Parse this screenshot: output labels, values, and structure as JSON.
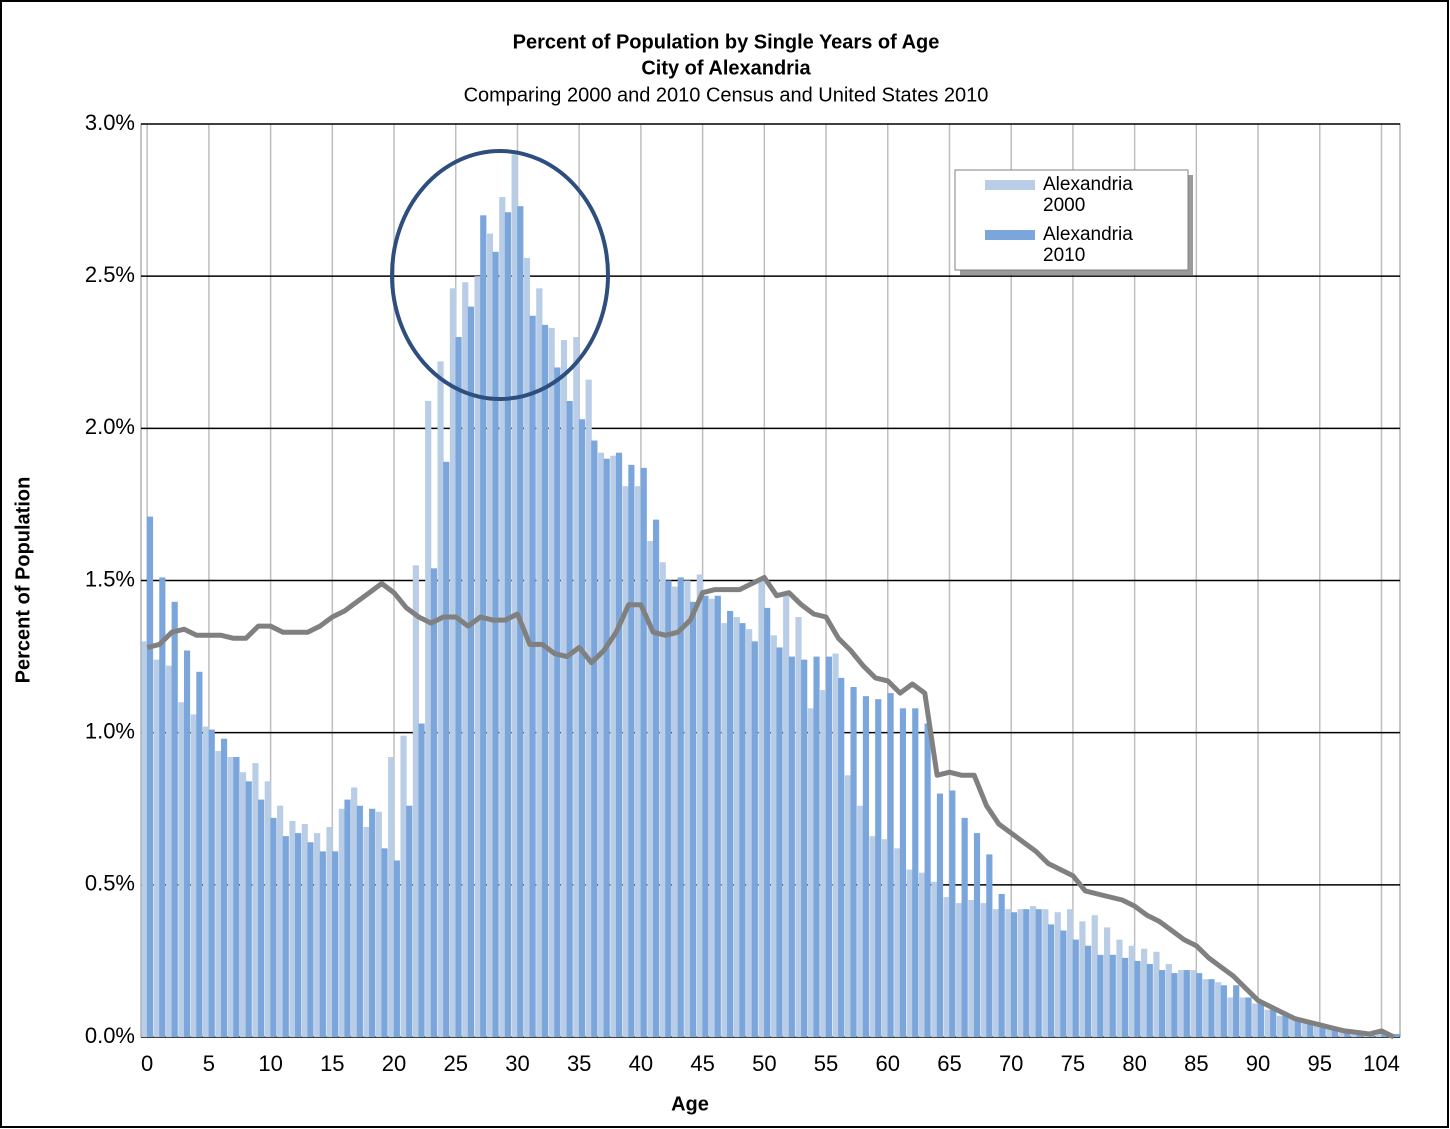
{
  "chart_data": {
    "type": "bar",
    "title": "Percent of Population by Single Years of Age",
    "subtitle_1": "City of Alexandria",
    "subtitle_2": "Comparing 2000 and 2010 Census and United States 2010",
    "x_label": "Age",
    "y_label": "Percent of Population",
    "categories": [
      "0",
      null,
      null,
      null,
      null,
      "5",
      null,
      null,
      null,
      null,
      "10",
      null,
      null,
      null,
      null,
      "15",
      null,
      null,
      null,
      null,
      "20",
      null,
      null,
      null,
      null,
      "25",
      null,
      null,
      null,
      null,
      "30",
      null,
      null,
      null,
      null,
      "35",
      null,
      null,
      null,
      null,
      "40",
      null,
      null,
      null,
      null,
      "45",
      null,
      null,
      null,
      null,
      "50",
      null,
      null,
      null,
      null,
      "55",
      null,
      null,
      null,
      null,
      "60",
      null,
      null,
      null,
      null,
      "65",
      null,
      null,
      null,
      null,
      "70",
      null,
      null,
      null,
      null,
      "75",
      null,
      null,
      null,
      null,
      "80",
      null,
      null,
      null,
      null,
      "85",
      null,
      null,
      null,
      null,
      "90",
      null,
      null,
      null,
      null,
      "95",
      null,
      null,
      null,
      null,
      "104",
      null
    ],
    "series": [
      {
        "name": "Alexandria 2000",
        "color": "#b9cde6",
        "values": [
          1.3,
          1.24,
          1.22,
          1.1,
          1.06,
          1.02,
          0.94,
          0.92,
          0.87,
          0.9,
          0.84,
          0.76,
          0.71,
          0.7,
          0.67,
          0.69,
          0.75,
          0.82,
          0.69,
          0.74,
          0.92,
          0.99,
          1.55,
          2.09,
          2.22,
          2.46,
          2.48,
          2.5,
          2.64,
          2.76,
          2.9,
          2.56,
          2.46,
          2.33,
          2.29,
          2.3,
          2.16,
          1.92,
          1.91,
          1.81,
          1.81,
          1.63,
          1.56,
          1.48,
          1.5,
          1.52,
          1.44,
          1.36,
          1.38,
          1.34,
          1.5,
          1.32,
          1.46,
          1.38,
          1.08,
          1.14,
          1.26,
          0.86,
          0.76,
          0.66,
          0.65,
          0.62,
          0.55,
          0.54,
          0.51,
          0.46,
          0.44,
          0.45,
          0.44,
          0.42,
          0.42,
          0.42,
          0.43,
          0.42,
          0.41,
          0.42,
          0.38,
          0.4,
          0.36,
          0.32,
          0.3,
          0.29,
          0.28,
          0.24,
          0.22,
          0.22,
          0.19,
          0.18,
          0.13,
          0.13,
          0.11,
          0.09,
          0.07,
          0.06,
          0.05,
          0.04,
          0.03,
          0.02,
          0.02,
          0.01,
          0.01,
          0.005
        ]
      },
      {
        "name": "Alexandria 2010",
        "color": "#7aa6dc",
        "values": [
          1.71,
          1.51,
          1.43,
          1.27,
          1.2,
          1.01,
          0.98,
          0.92,
          0.84,
          0.78,
          0.72,
          0.66,
          0.67,
          0.64,
          0.61,
          0.61,
          0.78,
          0.76,
          0.75,
          0.62,
          0.58,
          0.76,
          1.03,
          1.54,
          1.89,
          2.3,
          2.4,
          2.7,
          2.58,
          2.71,
          2.73,
          2.37,
          2.34,
          2.2,
          2.09,
          2.03,
          1.96,
          1.9,
          1.92,
          1.88,
          1.87,
          1.7,
          1.5,
          1.51,
          1.43,
          1.45,
          1.45,
          1.4,
          1.36,
          1.3,
          1.41,
          1.28,
          1.25,
          1.24,
          1.25,
          1.25,
          1.18,
          1.15,
          1.12,
          1.11,
          1.13,
          1.08,
          1.08,
          1.03,
          0.8,
          0.81,
          0.72,
          0.67,
          0.6,
          0.47,
          0.41,
          0.42,
          0.42,
          0.37,
          0.35,
          0.32,
          0.3,
          0.27,
          0.27,
          0.26,
          0.25,
          0.24,
          0.22,
          0.21,
          0.22,
          0.21,
          0.19,
          0.17,
          0.17,
          0.13,
          0.11,
          0.09,
          0.07,
          0.06,
          0.05,
          0.04,
          0.03,
          0.02,
          0.02,
          0.01,
          0.01,
          0.01
        ]
      },
      {
        "type": "line",
        "color": "#808080",
        "values": [
          1.28,
          1.29,
          1.33,
          1.34,
          1.32,
          1.32,
          1.32,
          1.31,
          1.31,
          1.35,
          1.35,
          1.33,
          1.33,
          1.33,
          1.35,
          1.38,
          1.4,
          1.43,
          1.46,
          1.49,
          1.46,
          1.41,
          1.38,
          1.36,
          1.38,
          1.38,
          1.35,
          1.38,
          1.37,
          1.37,
          1.39,
          1.29,
          1.29,
          1.26,
          1.25,
          1.28,
          1.23,
          1.27,
          1.33,
          1.42,
          1.42,
          1.33,
          1.32,
          1.33,
          1.37,
          1.46,
          1.47,
          1.47,
          1.47,
          1.49,
          1.51,
          1.45,
          1.46,
          1.42,
          1.39,
          1.38,
          1.31,
          1.27,
          1.22,
          1.18,
          1.17,
          1.13,
          1.16,
          1.13,
          0.86,
          0.87,
          0.86,
          0.86,
          0.76,
          0.7,
          0.67,
          0.64,
          0.61,
          0.57,
          0.55,
          0.53,
          0.48,
          0.47,
          0.46,
          0.45,
          0.43,
          0.4,
          0.38,
          0.35,
          0.32,
          0.3,
          0.26,
          0.23,
          0.2,
          0.16,
          0.12,
          0.1,
          0.08,
          0.06,
          0.05,
          0.04,
          0.03,
          0.02,
          0.015,
          0.01,
          0.02,
          0.0
        ]
      }
    ],
    "ylim": [
      0,
      3
    ],
    "yticks": [
      {
        "value": 0,
        "label": "0.0%"
      },
      {
        "value": 0.5,
        "label": "0.5%"
      },
      {
        "value": 1,
        "label": "1.0%"
      },
      {
        "value": 1.5,
        "label": "1.5%"
      },
      {
        "value": 2,
        "label": "2.0%"
      },
      {
        "value": 2.5,
        "label": "2.5%"
      },
      {
        "value": 3,
        "label": "3.0%"
      }
    ],
    "grid": true,
    "legend": "upper right"
  }
}
